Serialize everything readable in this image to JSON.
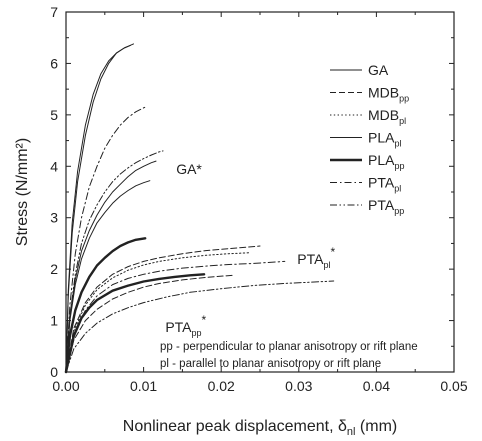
{
  "chart_data": {
    "type": "line",
    "xlabel_main": "Nonlinear peak displacement, δ",
    "xlabel_sub": "nl",
    "xlabel_tail": " (mm)",
    "ylabel": "Stress (N/mm²)",
    "xlim": [
      0,
      0.05
    ],
    "ylim": [
      0,
      7
    ],
    "xticks": [
      "0.00",
      "0.01",
      "0.02",
      "0.03",
      "0.04",
      "0.05"
    ],
    "yticks": [
      "0",
      "1",
      "2",
      "3",
      "4",
      "5",
      "6",
      "7"
    ],
    "grid": false,
    "legend_position": "right",
    "legend": [
      {
        "main": "GA",
        "sub": "",
        "style": "solid",
        "width": 1
      },
      {
        "main": "MDB",
        "sub": "pp",
        "style": "dash",
        "width": 1
      },
      {
        "main": "MDB",
        "sub": "pl",
        "style": "dot",
        "width": 1
      },
      {
        "main": "PLA",
        "sub": "pl",
        "style": "solid",
        "width": 1
      },
      {
        "main": "PLA",
        "sub": "pp",
        "style": "solid",
        "width": 2.4
      },
      {
        "main": "PTA",
        "sub": "pl",
        "style": "dashdot",
        "width": 1
      },
      {
        "main": "PTA",
        "sub": "pp",
        "style": "dashdotdot",
        "width": 1
      }
    ],
    "annotations": [
      {
        "main": "GA*",
        "sub": "",
        "x": 0.0142,
        "y": 3.85
      },
      {
        "main": "PTA",
        "sub": "pl",
        "sup": "*",
        "x": 0.0298,
        "y": 2.1
      },
      {
        "main": "PTA",
        "sub": "pp",
        "sup": "*",
        "x": 0.0128,
        "y": 0.78
      }
    ],
    "note_lines": [
      "pp - perpendicular to planar anisotropy or rift plane",
      "pl  - parallel to planar anisotropy or rift plane"
    ],
    "series": [
      {
        "style": "solid",
        "width": 1,
        "x": [
          0.0,
          0.0003,
          0.0008,
          0.0015,
          0.0025,
          0.0035,
          0.0045,
          0.0055,
          0.0065,
          0.0075,
          0.0083
        ],
        "y": [
          0.0,
          1.6,
          2.9,
          3.9,
          4.8,
          5.4,
          5.8,
          6.05,
          6.2,
          6.3,
          6.35
        ]
      },
      {
        "style": "solid",
        "width": 1,
        "x": [
          0.0,
          0.0003,
          0.0008,
          0.0015,
          0.0025,
          0.0035,
          0.0045,
          0.0055,
          0.0065,
          0.0075,
          0.0087
        ],
        "y": [
          0.0,
          1.5,
          2.7,
          3.7,
          4.6,
          5.25,
          5.7,
          6.0,
          6.2,
          6.3,
          6.38
        ]
      },
      {
        "style": "dashdot",
        "width": 1,
        "x": [
          0.0,
          0.0005,
          0.0012,
          0.002,
          0.003,
          0.004,
          0.005,
          0.006,
          0.007,
          0.008,
          0.009,
          0.0102
        ],
        "y": [
          0.0,
          1.3,
          2.3,
          3.0,
          3.6,
          4.0,
          4.35,
          4.6,
          4.8,
          4.95,
          5.06,
          5.15
        ]
      },
      {
        "style": "dashdotdot",
        "width": 1,
        "x": [
          0.0,
          0.0005,
          0.0012,
          0.002,
          0.003,
          0.004,
          0.005,
          0.006,
          0.007,
          0.008,
          0.009,
          0.01,
          0.011,
          0.012,
          0.0125
        ],
        "y": [
          0.0,
          1.1,
          1.9,
          2.5,
          2.95,
          3.25,
          3.5,
          3.7,
          3.85,
          3.97,
          4.07,
          4.15,
          4.22,
          4.28,
          4.3
        ]
      },
      {
        "style": "solid",
        "width": 1,
        "x": [
          0.0,
          0.0005,
          0.0012,
          0.002,
          0.003,
          0.004,
          0.005,
          0.006,
          0.007,
          0.008,
          0.009,
          0.01,
          0.011,
          0.0116
        ],
        "y": [
          0.0,
          1.1,
          1.8,
          2.35,
          2.75,
          3.05,
          3.3,
          3.5,
          3.65,
          3.8,
          3.92,
          4.0,
          4.07,
          4.1
        ]
      },
      {
        "style": "solid",
        "width": 1,
        "x": [
          0.0,
          0.0005,
          0.0012,
          0.002,
          0.003,
          0.004,
          0.005,
          0.006,
          0.007,
          0.008,
          0.009,
          0.01,
          0.0108
        ],
        "y": [
          0.0,
          1.0,
          1.7,
          2.2,
          2.6,
          2.9,
          3.1,
          3.28,
          3.42,
          3.53,
          3.62,
          3.68,
          3.72
        ]
      },
      {
        "style": "solid",
        "width": 2.4,
        "x": [
          0.0,
          0.0005,
          0.0012,
          0.002,
          0.003,
          0.004,
          0.005,
          0.006,
          0.007,
          0.008,
          0.009,
          0.0102
        ],
        "y": [
          0.0,
          0.7,
          1.2,
          1.55,
          1.85,
          2.07,
          2.22,
          2.35,
          2.45,
          2.52,
          2.57,
          2.6
        ]
      },
      {
        "style": "dash",
        "width": 1,
        "x": [
          0.0,
          0.001,
          0.0025,
          0.004,
          0.006,
          0.008,
          0.01,
          0.012,
          0.015,
          0.018,
          0.021,
          0.025
        ],
        "y": [
          0.0,
          0.85,
          1.35,
          1.65,
          1.9,
          2.05,
          2.15,
          2.22,
          2.3,
          2.36,
          2.4,
          2.45
        ]
      },
      {
        "style": "dot",
        "width": 1,
        "x": [
          0.0,
          0.001,
          0.0025,
          0.004,
          0.006,
          0.008,
          0.01,
          0.012,
          0.015,
          0.018,
          0.021,
          0.0238
        ],
        "y": [
          0.0,
          0.8,
          1.3,
          1.6,
          1.83,
          1.98,
          2.08,
          2.15,
          2.22,
          2.27,
          2.3,
          2.32
        ]
      },
      {
        "style": "dashdot",
        "width": 1,
        "x": [
          0.0,
          0.001,
          0.0025,
          0.004,
          0.006,
          0.008,
          0.01,
          0.012,
          0.015,
          0.018,
          0.021,
          0.024,
          0.026,
          0.0282
        ],
        "y": [
          0.0,
          0.75,
          1.2,
          1.48,
          1.7,
          1.82,
          1.9,
          1.96,
          2.02,
          2.06,
          2.09,
          2.11,
          2.13,
          2.15
        ]
      },
      {
        "style": "solid",
        "width": 2.4,
        "x": [
          0.0,
          0.001,
          0.002,
          0.003,
          0.004,
          0.006,
          0.008,
          0.01,
          0.012,
          0.014,
          0.016,
          0.0178
        ],
        "y": [
          0.0,
          0.7,
          1.05,
          1.25,
          1.4,
          1.58,
          1.68,
          1.76,
          1.81,
          1.85,
          1.88,
          1.9
        ]
      },
      {
        "style": "dash",
        "width": 1,
        "x": [
          0.0,
          0.001,
          0.0025,
          0.004,
          0.006,
          0.008,
          0.01,
          0.012,
          0.015,
          0.018,
          0.0215
        ],
        "y": [
          0.0,
          0.62,
          1.0,
          1.22,
          1.42,
          1.55,
          1.65,
          1.72,
          1.79,
          1.84,
          1.88
        ]
      },
      {
        "style": "dashdotdot",
        "width": 1,
        "x": [
          0.0,
          0.001,
          0.0025,
          0.004,
          0.006,
          0.008,
          0.01,
          0.013,
          0.016,
          0.02,
          0.024,
          0.028,
          0.032,
          0.0345
        ],
        "y": [
          0.0,
          0.45,
          0.75,
          0.95,
          1.13,
          1.25,
          1.35,
          1.46,
          1.55,
          1.62,
          1.68,
          1.72,
          1.75,
          1.77
        ]
      }
    ]
  }
}
